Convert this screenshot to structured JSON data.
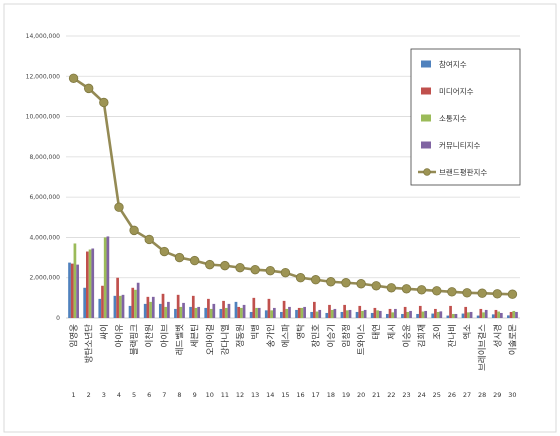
{
  "chart_data": {
    "type": "bar",
    "title": "",
    "xlabel": "",
    "ylabel": "",
    "ylim": [
      0,
      14000000
    ],
    "yticks": [
      "0",
      "2,000,000",
      "4,000,000",
      "6,000,000",
      "8,000,000",
      "10,000,000",
      "12,000,000",
      "14,000,000"
    ],
    "ytick_values": [
      0,
      2000000,
      4000000,
      6000000,
      8000000,
      10000000,
      12000000,
      14000000
    ],
    "grid": true,
    "legend_position": "top-right",
    "categories": [
      "임영웅",
      "방탄소년단",
      "싸이",
      "아이유",
      "블랙핑크",
      "이찬원",
      "아이브",
      "레드벨벳",
      "세븐틴",
      "오마이걸",
      "강다니엘",
      "정동원",
      "빅뱅",
      "송가인",
      "에스파",
      "영탁",
      "장민호",
      "이승기",
      "임창정",
      "트와이스",
      "태연",
      "제시",
      "이승윤",
      "김희재",
      "조이",
      "잔나비",
      "엑소",
      "브레이브걸스",
      "성시경",
      "이솔로몬"
    ],
    "ranks": [
      "1",
      "2",
      "3",
      "4",
      "5",
      "6",
      "7",
      "8",
      "9",
      "10",
      "11",
      "12",
      "13",
      "14",
      "15",
      "16",
      "17",
      "18",
      "19",
      "20",
      "21",
      "22",
      "23",
      "24",
      "25",
      "26",
      "27",
      "28",
      "29",
      "30"
    ],
    "series": [
      {
        "name": "참여지수",
        "kind": "bar",
        "color": "#4f81bd",
        "values": [
          2750000,
          1500000,
          950000,
          1100000,
          600000,
          700000,
          700000,
          450000,
          550000,
          500000,
          450000,
          800000,
          300000,
          380000,
          300000,
          400000,
          300000,
          250000,
          300000,
          300000,
          250000,
          200000,
          200000,
          200000,
          220000,
          120000,
          220000,
          120000,
          180000,
          130000
        ]
      },
      {
        "name": "미디어지수",
        "kind": "bar",
        "color": "#c0504d",
        "values": [
          2700000,
          3300000,
          1600000,
          2000000,
          1500000,
          1050000,
          1200000,
          1150000,
          1100000,
          950000,
          850000,
          550000,
          1000000,
          950000,
          850000,
          500000,
          800000,
          650000,
          650000,
          600000,
          500000,
          450000,
          550000,
          600000,
          450000,
          600000,
          550000,
          450000,
          400000,
          300000
        ]
      },
      {
        "name": "소통지수",
        "kind": "bar",
        "color": "#9bbb59",
        "values": [
          3700000,
          3400000,
          4000000,
          1100000,
          1400000,
          800000,
          550000,
          550000,
          500000,
          450000,
          500000,
          500000,
          500000,
          380000,
          450000,
          500000,
          320000,
          400000,
          380000,
          350000,
          380000,
          280000,
          300000,
          320000,
          300000,
          200000,
          280000,
          280000,
          320000,
          350000
        ]
      },
      {
        "name": "커뮤니티지수",
        "kind": "bar",
        "color": "#8064a2",
        "values": [
          2650000,
          3450000,
          4050000,
          1150000,
          1750000,
          1050000,
          800000,
          750000,
          550000,
          700000,
          700000,
          650000,
          500000,
          500000,
          550000,
          550000,
          400000,
          450000,
          400000,
          400000,
          350000,
          450000,
          350000,
          350000,
          330000,
          200000,
          300000,
          400000,
          250000,
          300000
        ]
      },
      {
        "name": "브랜드평판지수",
        "kind": "line",
        "color": "#948a54",
        "values": [
          11900000,
          11400000,
          10700000,
          5500000,
          4350000,
          3900000,
          3300000,
          3000000,
          2850000,
          2650000,
          2600000,
          2500000,
          2400000,
          2350000,
          2250000,
          2000000,
          1900000,
          1800000,
          1750000,
          1700000,
          1600000,
          1500000,
          1450000,
          1400000,
          1350000,
          1300000,
          1250000,
          1230000,
          1200000,
          1180000
        ]
      }
    ]
  }
}
